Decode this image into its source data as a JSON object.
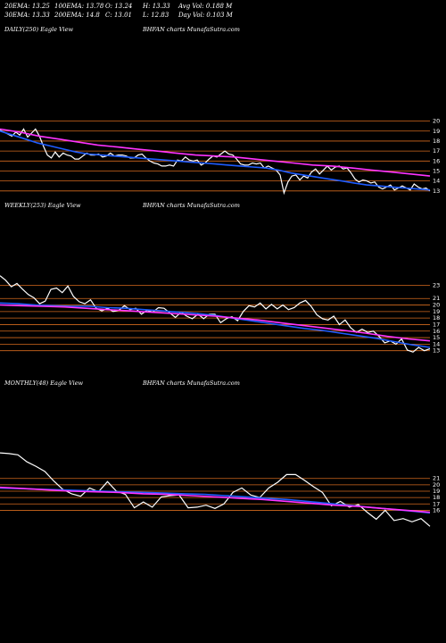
{
  "header": {
    "ema20": "20EMA: 13.25",
    "ema100": "100EMA: 13.78",
    "open": "O: 13.24",
    "high": "H: 13.33",
    "avg_vol": "Avg Vol: 0.188  M",
    "ema30": "30EMA: 13.33",
    "ema200": "200EMA: 14.8",
    "close": "C: 13.01",
    "low": "L: 12.83",
    "day_vol": "Day Vol: 0.103  M"
  },
  "colors": {
    "background": "#000000",
    "price": "#ffffff",
    "ema_fast": "#1e5cff",
    "ema_slow": "#ff33ff",
    "ma_band": "#c8a06a",
    "level_line": "#d2691e"
  },
  "chart_data": [
    {
      "type": "line",
      "panel_label": "DAILY(250) Eagle  View",
      "site_label": "BHFAN  charts MunafaSutra.com",
      "y_ticks": [
        20,
        19,
        18,
        17,
        16,
        15,
        14,
        13
      ],
      "ylim": [
        12,
        20.5
      ],
      "series": [
        {
          "name": "Price",
          "values": [
            19.1,
            18.9,
            18.7,
            18.5,
            18.9,
            18.6,
            19.2,
            18.4,
            18.8,
            19.2,
            18.5,
            17.5,
            16.6,
            16.3,
            16.9,
            16.4,
            16.8,
            16.6,
            16.5,
            16.2,
            16.2,
            16.5,
            16.8,
            16.6,
            16.6,
            16.7,
            16.4,
            16.5,
            16.8,
            16.5,
            16.6,
            16.6,
            16.5,
            16.3,
            16.3,
            16.6,
            16.7,
            16.3,
            16.0,
            15.8,
            15.7,
            15.5,
            15.5,
            15.6,
            15.5,
            16.1,
            16.0,
            16.4,
            16.1,
            16.0,
            16.1,
            15.6,
            15.8,
            16.2,
            16.5,
            16.4,
            16.7,
            17.0,
            16.7,
            16.6,
            16.2,
            15.7,
            15.6,
            15.6,
            15.8,
            15.7,
            15.8,
            15.3,
            15.5,
            15.3,
            15.1,
            14.6,
            12.8,
            13.9,
            14.5,
            14.6,
            14.1,
            14.5,
            14.3,
            14.9,
            15.2,
            14.7,
            15.1,
            15.5,
            15.1,
            15.4,
            15.5,
            15.2,
            15.3,
            14.8,
            14.2,
            13.9,
            14.1,
            14.0,
            13.8,
            13.9,
            13.4,
            13.2,
            13.4,
            13.6,
            13.1,
            13.3,
            13.5,
            13.3,
            13.1,
            13.7,
            13.4,
            13.2,
            13.3,
            13.0
          ]
        },
        {
          "name": "EMA fast",
          "values": [
            19.0,
            18.6,
            18.2,
            17.8,
            17.5,
            17.2,
            16.9,
            16.7,
            16.6,
            16.5,
            16.4,
            16.3,
            16.2,
            16.1,
            16.0,
            15.9,
            15.8,
            15.7,
            15.6,
            15.5,
            15.4,
            15.3,
            15.1,
            14.8,
            14.6,
            14.4,
            14.2,
            14.0,
            13.8,
            13.6,
            13.5,
            13.4,
            13.3,
            13.2,
            13.1
          ]
        },
        {
          "name": "EMA slow",
          "values": [
            19.2,
            18.9,
            18.5,
            18.2,
            17.9,
            17.6,
            17.4,
            17.2,
            17.0,
            16.8,
            16.6,
            16.5,
            16.4,
            16.2,
            16.0,
            15.8,
            15.6,
            15.5,
            15.3,
            15.1,
            14.9,
            14.7,
            14.5
          ]
        }
      ],
      "levels": [
        20,
        19,
        18,
        17,
        16,
        15,
        14,
        13
      ]
    },
    {
      "type": "line",
      "panel_label": "WEEKLY(253) Eagle  View",
      "site_label": "BHFAN  charts MunafaSutra.com",
      "y_ticks": [
        23,
        21,
        20,
        19,
        18,
        17,
        16,
        15,
        14,
        13
      ],
      "ylim": [
        12,
        25
      ],
      "series": [
        {
          "name": "Price",
          "values": [
            24.5,
            23.8,
            22.8,
            23.3,
            22.4,
            21.6,
            21.1,
            20.2,
            20.6,
            22.4,
            22.6,
            21.9,
            22.9,
            21.3,
            20.5,
            20.2,
            20.8,
            19.5,
            19.1,
            19.5,
            19.0,
            19.2,
            19.9,
            19.3,
            19.5,
            18.6,
            19.2,
            18.9,
            19.6,
            19.5,
            18.8,
            18.1,
            18.9,
            18.3,
            17.9,
            18.6,
            17.9,
            18.6,
            18.6,
            17.3,
            17.9,
            18.2,
            17.6,
            19.0,
            19.9,
            19.7,
            20.3,
            19.4,
            20.1,
            19.4,
            20.0,
            19.3,
            19.6,
            20.3,
            20.7,
            19.8,
            18.5,
            17.9,
            17.7,
            18.3,
            17.0,
            17.7,
            16.5,
            15.8,
            16.3,
            15.8,
            16.0,
            15.2,
            14.2,
            14.5,
            14.0,
            14.8,
            13.1,
            12.8,
            13.5,
            13.0,
            13.3
          ]
        },
        {
          "name": "EMA fast",
          "values": [
            20.3,
            20.2,
            20.0,
            19.9,
            19.8,
            19.8,
            19.6,
            19.5,
            19.3,
            19.1,
            18.9,
            18.7,
            18.4,
            18.0,
            17.6,
            17.2,
            16.8,
            16.4,
            16.1,
            15.7,
            15.3,
            14.9,
            14.4,
            13.9,
            13.5
          ]
        },
        {
          "name": "EMA slow",
          "values": [
            20.0,
            19.9,
            19.8,
            19.7,
            19.5,
            19.3,
            19.1,
            18.9,
            18.7,
            18.5,
            18.3,
            18.0,
            17.7,
            17.3,
            16.9,
            16.5,
            16.1,
            15.7,
            15.2,
            14.8,
            14.5
          ]
        }
      ],
      "levels": [
        23,
        21,
        20,
        19,
        18,
        17,
        16,
        15,
        14,
        13
      ]
    },
    {
      "type": "line",
      "panel_label": "MONTHLY(48) Eagle  View",
      "site_label": "BHFAN  charts MunafaSutra.com",
      "y_ticks": [
        21,
        20,
        19,
        18,
        17,
        16
      ],
      "ylim": [
        12,
        26
      ],
      "series": [
        {
          "name": "Price",
          "values": [
            25.0,
            24.9,
            24.7,
            23.6,
            22.9,
            22.1,
            20.6,
            19.3,
            18.6,
            18.2,
            19.5,
            18.9,
            20.5,
            19.0,
            18.5,
            16.4,
            17.3,
            16.5,
            18.1,
            18.3,
            18.4,
            16.4,
            16.5,
            16.8,
            16.3,
            17.0,
            18.8,
            19.5,
            18.4,
            18.0,
            19.5,
            20.4,
            21.6,
            21.6,
            20.7,
            19.7,
            18.8,
            16.7,
            17.4,
            16.5,
            16.9,
            15.7,
            14.6,
            16.0,
            14.4,
            14.7,
            14.2,
            14.7,
            13.5
          ]
        },
        {
          "name": "EMA fast",
          "values": [
            19.5,
            19.4,
            19.3,
            19.2,
            19.1,
            19.0,
            18.9,
            18.8,
            18.7,
            18.6,
            18.5,
            18.3,
            18.1,
            17.9,
            17.7,
            17.4,
            17.1,
            16.8,
            16.5,
            16.2,
            15.9,
            15.6
          ]
        },
        {
          "name": "EMA slow",
          "values": [
            19.6,
            19.4,
            19.2,
            19.0,
            18.9,
            18.8,
            18.6,
            18.5,
            18.3,
            18.1,
            17.9,
            17.7,
            17.4,
            17.1,
            16.8,
            16.6,
            16.3,
            16.0,
            15.7
          ]
        }
      ],
      "levels": [
        21,
        20,
        19,
        18,
        17,
        16
      ]
    }
  ]
}
